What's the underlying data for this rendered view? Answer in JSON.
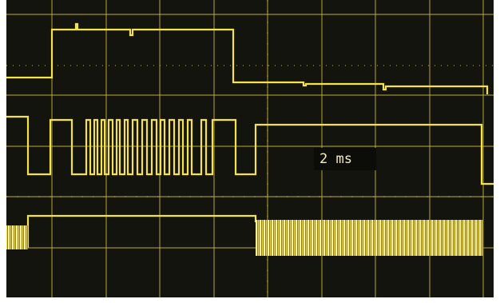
{
  "screen": {
    "timebase_label": "2 ms"
  }
}
